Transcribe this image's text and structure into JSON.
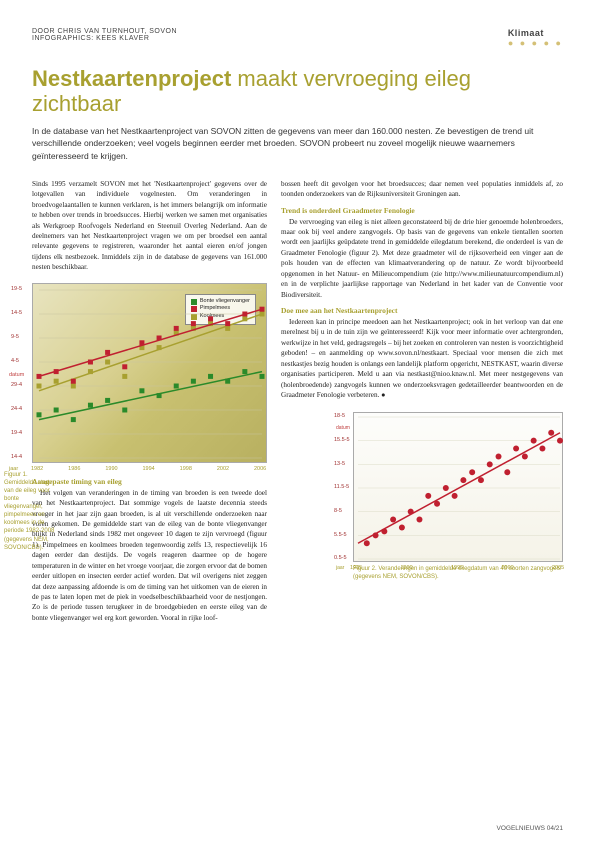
{
  "header": {
    "byline": "DOOR CHRIS VAN TURNHOUT, SOVON",
    "byline2": "INFOGRAPHICS: KEES KLAVER",
    "section": "Klimaat",
    "dots": "● ● ● ● ●"
  },
  "title": {
    "accent": "Nestkaartenproject",
    "rest": " maakt vervroeging eileg zichtbaar"
  },
  "intro": "In de database van het Nestkaartenproject van SOVON zitten de gegevens van meer dan 160.000 nesten. Ze bevestigen de trend uit verschillende onderzoeken; veel vogels beginnen eerder met broeden. SOVON probeert nu zoveel mogelijk nieuwe waarnemers geïnteresseerd te krijgen.",
  "para1": "Sinds 1995 verzamelt SOVON met het 'Nestkaartenproject' gegevens over de lotgevallen van individuele vogelnesten. Om veranderingen in broedvogelaantallen te kunnen verklaren, is het immers belangrijk om informatie te hebben over trends in broedsucces. Hierbij werken we samen met organisaties als Werkgroep Roofvogels Nederland en Steenuil Overleg Nederland. Aan de deelnemers van het Nestkaartenproject vragen we om per broedsel een aantal relevante gegevens te registreren, waaronder het aantal eieren en/of jongen tijdens elk nestbezoek. Inmiddels zijn in de database de gegevens van 161.000 nesten beschikbaar.",
  "para2h": "Aangepaste timing van eileg",
  "para2": "Het volgen van veranderingen in de timing van broeden is een tweede doel van het Nestkaartenproject. Dat sommige vogels de laatste decennia steeds vroeger in het jaar zijn gaan broeden, is al uit verschillende onderzoeken naar voren gekomen. De gemiddelde start van de eileg van de bonte vliegenvanger blijkt in Nederland sinds 1982 met ongeveer 10 dagen te zijn vervroegd (figuur 1). Pimpelmees en koolmees broeden tegenwoordig zelfs 13, respectievelijk 16 dagen eerder dan destijds. De vogels reageren daarmee op de hogere temperaturen in de winter en het vroege voorjaar, die zorgen ervoor dat de bomen eerder uitlopen en insecten eerder actief worden. Dat wil overigens niet zeggen dat deze aanpassing afdoende is om de timing van het uitkomen van de eieren in de pas te laten lopen met de piek in voedselbeschikbaarheid voor de nestjongen. Zo is de periode tussen terugkeer in de broedgebieden en eerste eileg van de bonte vliegenvanger wel erg kort geworden. Vooral in rijke loof-",
  "para3": "bossen heeft dit gevolgen voor het broedsucces; daar nemen veel populaties inmiddels af, zo toonden onderzoekers van de Rijksuniversiteit Groningen aan.",
  "para4h": "Trend is onderdeel Graadmeter Fenologie",
  "para4": "De vervroeging van eileg is niet alleen geconstateerd bij de drie hier genoemde holenbroeders, maar ook bij veel andere zangvogels. Op basis van de gegevens van enkele tientallen soorten wordt een jaarlijks geüpdatete trend in gemiddelde eilegdatum berekend, die onderdeel is van de Graadmeter Fenologie (figuur 2). Met deze graadmeter wil de rijksoverheid een vinger aan de pols houden van de effecten van klimaatverandering op de natuur. Ze wordt bijvoorbeeld opgenomen in het Natuur- en Milieucompendium (zie http://www.milieunatuurcompendium.nl) en in de verplichte jaarlijkse rapportage van Nederland in het kader van de Conventie voor Biodiversiteit.",
  "para5h": "Doe mee aan het Nestkaartenproject",
  "para5": "Iedereen kan in principe meedoen aan het Nestkaartenproject; ook in het verloop van dat ene merelnest bij u in de tuin zijn we geïnteresseerd! Kijk voor meer informatie over achtergronden, werkwijze in het veld, gedragsregels – bij het zoeken en controleren van nesten is voorzichtigheid geboden! – en aanmelding op www.sovon.nl/nestkaart. Speciaal voor mensen die zich met nestkastjes bezig houden is onlangs een landelijk platform opgericht, NESTKAST, waarin diverse organisaties participeren. Meld u aan via nestkast@nioo.knaw.nl. Met meer nestgegevens van (holenbroedende) zangvogels kunnen we onderzoeksvragen gedetailleerder beantwoorden en de Graadmeter Fenologie verbeteren. ●",
  "chart1": {
    "caption": "Figuur 1. Gemiddelde start van de eileg voor bonte vliegenvanger, pimpelmees en koolmees in de periode 1982-2008 (gegevens NEM, SOVON/CBS).",
    "legend": [
      "Bonte vliegenvanger",
      "Pimpelmees",
      "Koolmees"
    ],
    "colors": {
      "vliegenvanger": "#2a8a2a",
      "pimpelmees": "#c02030",
      "koolmees": "#a8a030"
    },
    "y_axis_label": "datum",
    "x_axis_label": "jaar",
    "y_ticks": [
      "19-5",
      "14-5",
      "9-5",
      "4-5",
      "29-4",
      "24-4",
      "19-4",
      "14-4"
    ],
    "x_ticks": [
      "1982",
      "1986",
      "1990",
      "1994",
      "1998",
      "2002",
      "2006"
    ],
    "y_range": [
      0,
      35
    ],
    "x_range": [
      1982,
      2008
    ],
    "series": {
      "vliegenvanger": [
        [
          1982,
          9
        ],
        [
          1984,
          10
        ],
        [
          1986,
          8
        ],
        [
          1988,
          11
        ],
        [
          1990,
          12
        ],
        [
          1992,
          10
        ],
        [
          1994,
          14
        ],
        [
          1996,
          13
        ],
        [
          1998,
          15
        ],
        [
          2000,
          16
        ],
        [
          2002,
          17
        ],
        [
          2004,
          16
        ],
        [
          2006,
          18
        ],
        [
          2008,
          17
        ]
      ],
      "pimpelmees": [
        [
          1982,
          17
        ],
        [
          1984,
          18
        ],
        [
          1986,
          16
        ],
        [
          1988,
          20
        ],
        [
          1990,
          22
        ],
        [
          1992,
          19
        ],
        [
          1994,
          24
        ],
        [
          1996,
          25
        ],
        [
          1998,
          27
        ],
        [
          2000,
          28
        ],
        [
          2002,
          29
        ],
        [
          2004,
          28
        ],
        [
          2006,
          30
        ],
        [
          2008,
          31
        ]
      ],
      "koolmees": [
        [
          1982,
          15
        ],
        [
          1984,
          16
        ],
        [
          1986,
          15
        ],
        [
          1988,
          18
        ],
        [
          1990,
          20
        ],
        [
          1992,
          17
        ],
        [
          1994,
          23
        ],
        [
          1996,
          23
        ],
        [
          1998,
          26
        ],
        [
          2000,
          27
        ],
        [
          2002,
          28
        ],
        [
          2004,
          27
        ],
        [
          2006,
          29
        ],
        [
          2008,
          30
        ]
      ]
    },
    "trend": {
      "vliegenvanger": [
        [
          1982,
          8
        ],
        [
          2008,
          18
        ]
      ],
      "pimpelmees": [
        [
          1982,
          17
        ],
        [
          2008,
          31
        ]
      ],
      "koolmees": [
        [
          1982,
          14
        ],
        [
          2008,
          30
        ]
      ]
    },
    "grid_color": "#c8c4a0",
    "bg_tint": "#e0dca8"
  },
  "chart2": {
    "caption": "Figuur 2. Veranderingen in gemiddelde eilegdatum van 40 soorten zangvogels (gegevens NEM, SOVON/CBS).",
    "y_axis_label": "datum",
    "x_axis_label": "jaar",
    "y_ticks": [
      "18-5",
      "15.5-5",
      "13-5",
      "11.5-5",
      "8-5",
      "5.5-5",
      "0.5-5"
    ],
    "x_ticks": [
      "1985",
      "1990",
      "1995",
      "2000",
      "2005"
    ],
    "color": "#c02030",
    "y_range": [
      0,
      18
    ],
    "x_range": [
      1985,
      2008
    ],
    "points": [
      [
        1986,
        2
      ],
      [
        1987,
        3
      ],
      [
        1988,
        3.5
      ],
      [
        1989,
        5
      ],
      [
        1990,
        4
      ],
      [
        1991,
        6
      ],
      [
        1992,
        5
      ],
      [
        1993,
        8
      ],
      [
        1994,
        7
      ],
      [
        1995,
        9
      ],
      [
        1996,
        8
      ],
      [
        1997,
        10
      ],
      [
        1998,
        11
      ],
      [
        1999,
        10
      ],
      [
        2000,
        12
      ],
      [
        2001,
        13
      ],
      [
        2002,
        11
      ],
      [
        2003,
        14
      ],
      [
        2004,
        13
      ],
      [
        2005,
        15
      ],
      [
        2006,
        14
      ],
      [
        2007,
        16
      ],
      [
        2008,
        15
      ]
    ],
    "trend": [
      [
        1985,
        2
      ],
      [
        2008,
        16
      ]
    ],
    "grid_color": "#dcdcc8"
  },
  "footer": "VOGELNIEUWS 04/21"
}
